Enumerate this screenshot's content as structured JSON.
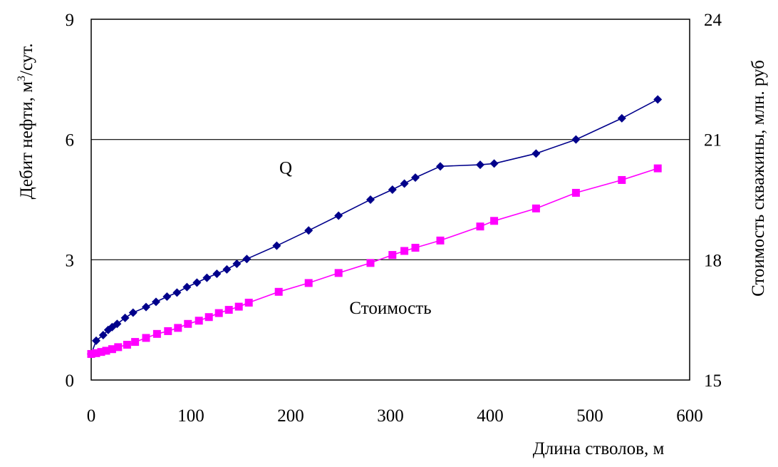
{
  "chart_data": {
    "type": "line",
    "xlabel": "Длина стволов, м",
    "ylabel": "Дебит нефти, м",
    "ylabel_sup": "3",
    "ylabel_tail": "/сут.",
    "y2label": "Стоимость скважины, млн. руб",
    "xlim": [
      0,
      600
    ],
    "ylim": [
      0,
      9
    ],
    "y2lim": [
      15,
      24
    ],
    "xticks": [
      "0",
      "100",
      "200",
      "300",
      "400",
      "500",
      "600"
    ],
    "yticks": [
      "0",
      "3",
      "6",
      "9"
    ],
    "y2ticks": [
      "15",
      "18",
      "21",
      "24"
    ],
    "gridlines_y": [
      3,
      6
    ],
    "series": [
      {
        "name": "Q",
        "axis": "left",
        "color": "#00008B",
        "marker": "diamond",
        "x": [
          0,
          5,
          12,
          17,
          21,
          26,
          34,
          42,
          55,
          65,
          76,
          86,
          96,
          106,
          116,
          126,
          136,
          146,
          156,
          186,
          218,
          248,
          280,
          302,
          314,
          325,
          350,
          390,
          404,
          446,
          486,
          532,
          568
        ],
        "y": [
          0.65,
          0.98,
          1.12,
          1.25,
          1.32,
          1.4,
          1.55,
          1.68,
          1.82,
          1.95,
          2.08,
          2.18,
          2.32,
          2.43,
          2.55,
          2.65,
          2.76,
          2.9,
          3.02,
          3.35,
          3.73,
          4.1,
          4.5,
          4.75,
          4.9,
          5.05,
          5.33,
          5.37,
          5.4,
          5.65,
          6.0,
          6.53,
          7.0
        ]
      },
      {
        "name": "Стоимость",
        "axis": "right",
        "color": "#FF00FF",
        "marker": "square",
        "x": [
          0,
          5,
          10,
          15,
          21,
          27,
          36,
          44,
          55,
          66,
          77,
          87,
          97,
          108,
          118,
          128,
          138,
          148,
          158,
          188,
          218,
          248,
          280,
          302,
          314,
          325,
          350,
          390,
          404,
          446,
          486,
          532,
          568
        ],
        "y": [
          15.65,
          15.67,
          15.7,
          15.73,
          15.77,
          15.82,
          15.88,
          15.95,
          16.05,
          16.15,
          16.22,
          16.3,
          16.4,
          16.48,
          16.57,
          16.67,
          16.75,
          16.83,
          16.93,
          17.2,
          17.42,
          17.67,
          17.92,
          18.12,
          18.22,
          18.3,
          18.48,
          18.83,
          18.97,
          19.28,
          19.67,
          19.99,
          20.28
        ]
      }
    ],
    "annotations": [
      {
        "text": "Q",
        "x": 195,
        "y": 5.15,
        "axis": "left"
      },
      {
        "text": "Стоимость",
        "x": 300,
        "y": 1.65,
        "axis": "left"
      }
    ]
  }
}
